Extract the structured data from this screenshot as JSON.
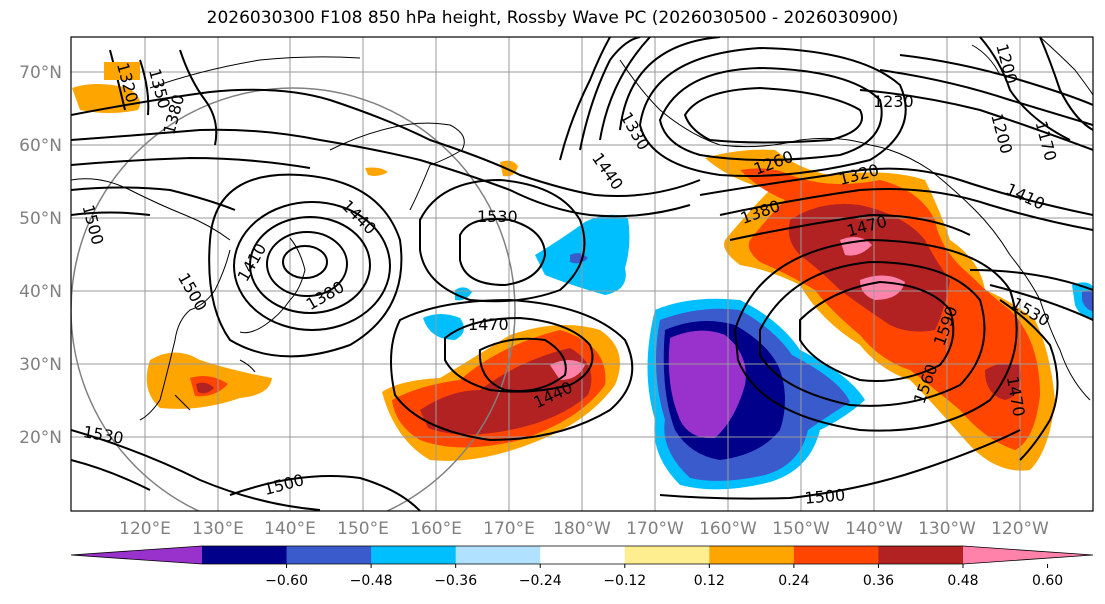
{
  "title": "2026030300 F108 850 hPa height, Rossby Wave PC (2026030500 - 2026030900)",
  "lat_labels": [
    "70°N",
    "60°N",
    "50°N",
    "40°N",
    "30°N",
    "20°N"
  ],
  "lon_labels": [
    "120°E",
    "130°E",
    "140°E",
    "150°E",
    "160°E",
    "170°E",
    "180°W",
    "170°W",
    "160°W",
    "150°W",
    "140°W",
    "130°W",
    "120°W"
  ],
  "contour_labels": [
    "1320",
    "1350",
    "1380",
    "1330",
    "1230",
    "1200",
    "1200",
    "1170",
    "1260",
    "1320",
    "1410",
    "1440",
    "1530",
    "1440",
    "1410",
    "1380",
    "1380",
    "1470",
    "1500",
    "1500",
    "1470",
    "1440",
    "1590",
    "1530",
    "1560",
    "1470",
    "1530",
    "1500",
    "1500"
  ],
  "colorbar": {
    "ticks": [
      "−0.60",
      "−0.48",
      "−0.36",
      "−0.24",
      "−0.12",
      "0.12",
      "0.24",
      "0.36",
      "0.48",
      "0.60"
    ],
    "colors": [
      "#9932cc",
      "#00008b",
      "#3a5bcc",
      "#00bfff",
      "#b0e2ff",
      "#ffffff",
      "#ffee8f",
      "#ffa500",
      "#ff4500",
      "#b22222",
      "#ff82ab"
    ]
  },
  "colors": {
    "land_line": "#000000",
    "grid": "#9a9a9a",
    "contour": "#000000"
  }
}
